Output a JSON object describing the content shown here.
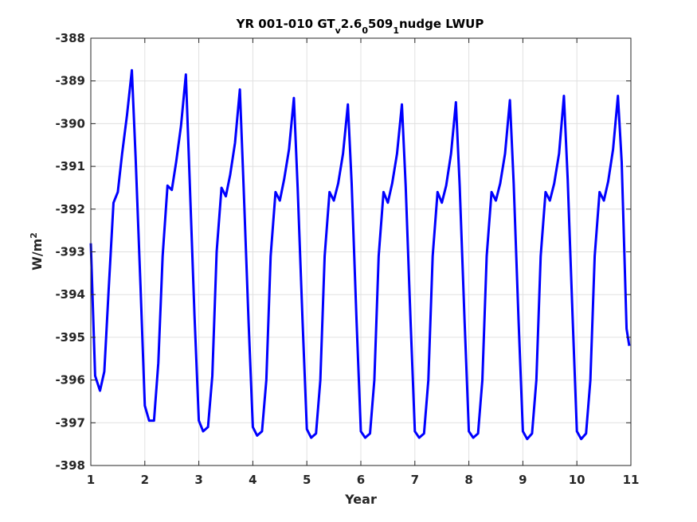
{
  "chart_data": {
    "type": "line",
    "title_parts": [
      {
        "text": "YR 001-010 GT",
        "shift": "none"
      },
      {
        "text": "v",
        "shift": "sub"
      },
      {
        "text": "2.6",
        "shift": "none"
      },
      {
        "text": "0",
        "shift": "sub"
      },
      {
        "text": "509",
        "shift": "none"
      },
      {
        "text": "1",
        "shift": "sub"
      },
      {
        "text": "nudge LWUP",
        "shift": "none"
      }
    ],
    "xlabel": "Year",
    "ylabel_base": "W/m",
    "ylabel_sup": "2",
    "xlim": [
      1,
      11
    ],
    "ylim": [
      -398,
      -388
    ],
    "xticks": [
      1,
      2,
      3,
      4,
      5,
      6,
      7,
      8,
      9,
      10,
      11
    ],
    "yticks": [
      -398,
      -397,
      -396,
      -395,
      -394,
      -393,
      -392,
      -391,
      -390,
      -389,
      -388
    ],
    "grid": true,
    "line_color": "#0000ff",
    "series": [
      {
        "x": [
          1.0,
          1.08,
          1.17,
          1.25,
          1.33,
          1.42,
          1.5,
          1.58,
          1.67,
          1.76,
          1.83,
          1.92,
          2.0,
          2.08,
          2.17,
          2.25,
          2.33,
          2.42,
          2.5,
          2.58,
          2.67,
          2.76,
          2.83,
          2.92,
          3.0,
          3.08,
          3.17,
          3.25,
          3.33,
          3.42,
          3.5,
          3.58,
          3.67,
          3.76,
          3.83,
          3.92,
          4.0,
          4.08,
          4.17,
          4.25,
          4.33,
          4.42,
          4.5,
          4.58,
          4.67,
          4.76,
          4.83,
          4.92,
          5.0,
          5.08,
          5.17,
          5.25,
          5.33,
          5.42,
          5.5,
          5.58,
          5.67,
          5.76,
          5.83,
          5.92,
          6.0,
          6.08,
          6.17,
          6.25,
          6.33,
          6.42,
          6.5,
          6.58,
          6.67,
          6.76,
          6.83,
          6.92,
          7.0,
          7.08,
          7.17,
          7.25,
          7.33,
          7.42,
          7.5,
          7.58,
          7.67,
          7.76,
          7.83,
          7.92,
          8.0,
          8.08,
          8.17,
          8.25,
          8.33,
          8.42,
          8.5,
          8.58,
          8.67,
          8.76,
          8.83,
          8.92,
          9.0,
          9.08,
          9.17,
          9.25,
          9.33,
          9.42,
          9.5,
          9.58,
          9.67,
          9.76,
          9.83,
          9.92,
          10.0,
          10.08,
          10.17,
          10.25,
          10.33,
          10.42,
          10.5,
          10.58,
          10.67,
          10.76,
          10.83,
          10.92,
          10.97
        ],
        "y": [
          -392.8,
          -395.9,
          -396.25,
          -395.8,
          -393.9,
          -391.85,
          -391.6,
          -390.7,
          -389.8,
          -388.75,
          -390.8,
          -393.8,
          -396.6,
          -396.95,
          -396.95,
          -395.6,
          -393.1,
          -391.45,
          -391.55,
          -390.9,
          -390.05,
          -388.85,
          -391.3,
          -394.5,
          -396.95,
          -397.2,
          -397.1,
          -395.9,
          -393.0,
          -391.5,
          -391.7,
          -391.2,
          -390.45,
          -389.2,
          -391.5,
          -394.6,
          -397.1,
          -397.3,
          -397.2,
          -396.0,
          -393.1,
          -391.6,
          -391.8,
          -391.3,
          -390.6,
          -389.4,
          -391.5,
          -394.6,
          -397.15,
          -397.35,
          -397.25,
          -396.0,
          -393.1,
          -391.6,
          -391.8,
          -391.4,
          -390.7,
          -389.55,
          -391.4,
          -394.6,
          -397.2,
          -397.35,
          -397.25,
          -396.0,
          -393.1,
          -391.6,
          -391.85,
          -391.4,
          -390.7,
          -389.55,
          -391.45,
          -394.6,
          -397.2,
          -397.35,
          -397.25,
          -396.0,
          -393.1,
          -391.6,
          -391.85,
          -391.45,
          -390.7,
          -389.5,
          -391.45,
          -394.6,
          -397.2,
          -397.35,
          -397.25,
          -396.0,
          -393.1,
          -391.6,
          -391.8,
          -391.4,
          -390.7,
          -389.45,
          -391.4,
          -394.6,
          -397.2,
          -397.38,
          -397.25,
          -396.0,
          -393.1,
          -391.6,
          -391.8,
          -391.4,
          -390.7,
          -389.35,
          -391.3,
          -394.5,
          -397.2,
          -397.38,
          -397.25,
          -396.0,
          -393.1,
          -391.6,
          -391.8,
          -391.35,
          -390.6,
          -389.35,
          -390.9,
          -394.8,
          -395.2
        ]
      }
    ]
  }
}
